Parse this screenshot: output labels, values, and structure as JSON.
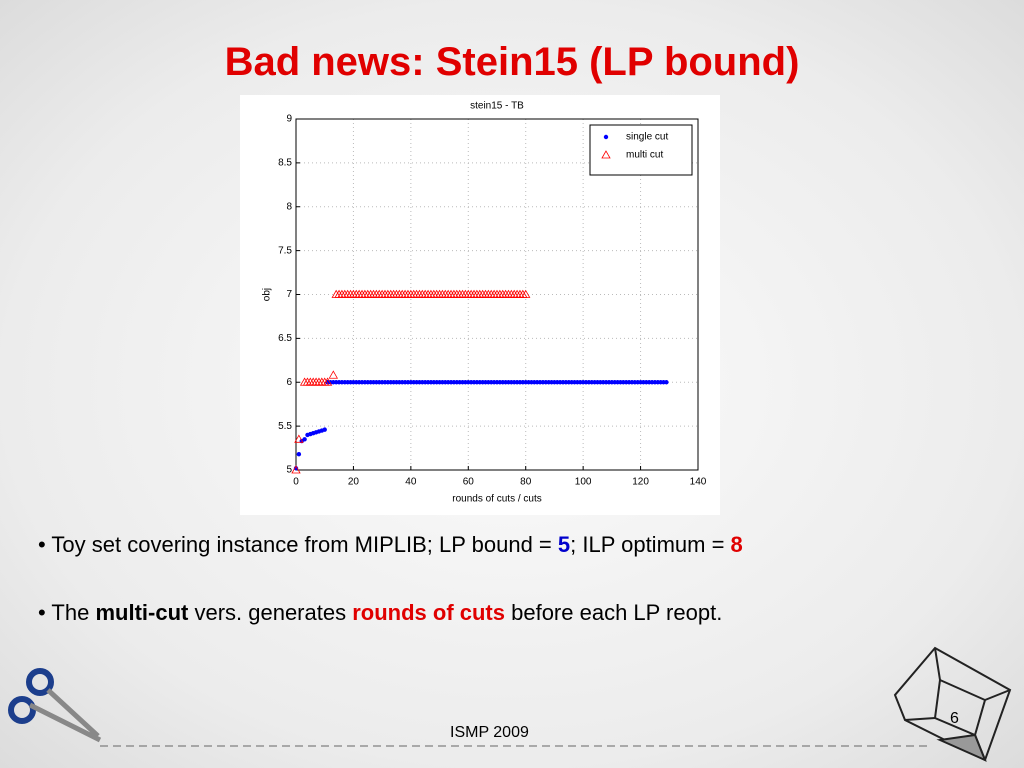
{
  "slide": {
    "title": "Bad news: Stein15 (LP bound)",
    "bullets": [
      [
        "• Toy set covering instance from MIPLIB; LP bound = ",
        5,
        "; ILP optimum = ",
        8
      ],
      [
        "• The ",
        "multi-cut",
        " vers. generates ",
        "rounds of cuts",
        " before each LP reopt."
      ]
    ],
    "footer": "ISMP 2009",
    "page": 6
  },
  "chart_data": {
    "type": "scatter",
    "title": "stein15 - TB",
    "xlabel": "rounds of cuts / cuts",
    "ylabel": "obj",
    "xlim": [
      0,
      140
    ],
    "xticks": [
      0,
      20,
      40,
      60,
      80,
      100,
      120,
      140
    ],
    "ylim": [
      5,
      9
    ],
    "yticks": [
      5,
      5.5,
      6,
      6.5,
      7,
      7.5,
      8,
      8.5,
      9
    ],
    "grid": true,
    "legend": "upper right",
    "series": [
      {
        "name": "single cut",
        "color": "#0000ff",
        "marker": "dot",
        "x": [
          0,
          1,
          2,
          3,
          4,
          5,
          6,
          7,
          8,
          9,
          10,
          11,
          12,
          13,
          14,
          15,
          16,
          17,
          18,
          19,
          20,
          21,
          22,
          23,
          24,
          25,
          26,
          27,
          28,
          29,
          30,
          31,
          32,
          33,
          34,
          35,
          36,
          37,
          38,
          39,
          40,
          41,
          42,
          43,
          44,
          45,
          46,
          47,
          48,
          49,
          50,
          51,
          52,
          53,
          54,
          55,
          56,
          57,
          58,
          59,
          60,
          61,
          62,
          63,
          64,
          65,
          66,
          67,
          68,
          69,
          70,
          71,
          72,
          73,
          74,
          75,
          76,
          77,
          78,
          79,
          80,
          81,
          82,
          83,
          84,
          85,
          86,
          87,
          88,
          89,
          90,
          91,
          92,
          93,
          94,
          95,
          96,
          97,
          98,
          99,
          100,
          101,
          102,
          103,
          104,
          105,
          106,
          107,
          108,
          109,
          110,
          111,
          112,
          113,
          114,
          115,
          116,
          117,
          118,
          119,
          120,
          121,
          122,
          123,
          124,
          125,
          126,
          127,
          128,
          129
        ],
        "values": [
          5.02,
          5.18,
          5.33,
          5.35,
          5.4,
          5.41,
          5.42,
          5.43,
          5.44,
          5.45,
          5.46,
          6,
          6,
          6,
          6,
          6,
          6,
          6,
          6,
          6,
          6,
          6,
          6,
          6,
          6,
          6,
          6,
          6,
          6,
          6,
          6,
          6,
          6,
          6,
          6,
          6,
          6,
          6,
          6,
          6,
          6,
          6,
          6,
          6,
          6,
          6,
          6,
          6,
          6,
          6,
          6,
          6,
          6,
          6,
          6,
          6,
          6,
          6,
          6,
          6,
          6,
          6,
          6,
          6,
          6,
          6,
          6,
          6,
          6,
          6,
          6,
          6,
          6,
          6,
          6,
          6,
          6,
          6,
          6,
          6,
          6,
          6,
          6,
          6,
          6,
          6,
          6,
          6,
          6,
          6,
          6,
          6,
          6,
          6,
          6,
          6,
          6,
          6,
          6,
          6,
          6,
          6,
          6,
          6,
          6,
          6,
          6,
          6,
          6,
          6,
          6,
          6,
          6,
          6,
          6,
          6,
          6,
          6,
          6,
          6,
          6,
          6,
          6,
          6,
          6,
          6,
          6,
          6,
          6,
          6
        ]
      },
      {
        "name": "multi cut",
        "color": "#ff0000",
        "marker": "triangle",
        "x": [
          0,
          1,
          3,
          4,
          5,
          6,
          7,
          8,
          9,
          10,
          11,
          13,
          14,
          15,
          16,
          17,
          18,
          19,
          20,
          21,
          22,
          23,
          24,
          25,
          26,
          27,
          28,
          29,
          30,
          31,
          32,
          33,
          34,
          35,
          36,
          37,
          38,
          39,
          40,
          41,
          42,
          43,
          44,
          45,
          46,
          47,
          48,
          49,
          50,
          51,
          52,
          53,
          54,
          55,
          56,
          57,
          58,
          59,
          60,
          61,
          62,
          63,
          64,
          65,
          66,
          67,
          68,
          69,
          70,
          71,
          72,
          73,
          74,
          75,
          76,
          77,
          78,
          79,
          80
        ],
        "values": [
          5.0,
          5.35,
          6,
          6,
          6,
          6,
          6,
          6,
          6,
          6,
          6,
          6.08,
          7,
          7,
          7,
          7,
          7,
          7,
          7,
          7,
          7,
          7,
          7,
          7,
          7,
          7,
          7,
          7,
          7,
          7,
          7,
          7,
          7,
          7,
          7,
          7,
          7,
          7,
          7,
          7,
          7,
          7,
          7,
          7,
          7,
          7,
          7,
          7,
          7,
          7,
          7,
          7,
          7,
          7,
          7,
          7,
          7,
          7,
          7,
          7,
          7,
          7,
          7,
          7,
          7,
          7,
          7,
          7,
          7,
          7,
          7,
          7,
          7,
          7,
          7,
          7,
          7,
          7,
          7
        ]
      }
    ]
  }
}
